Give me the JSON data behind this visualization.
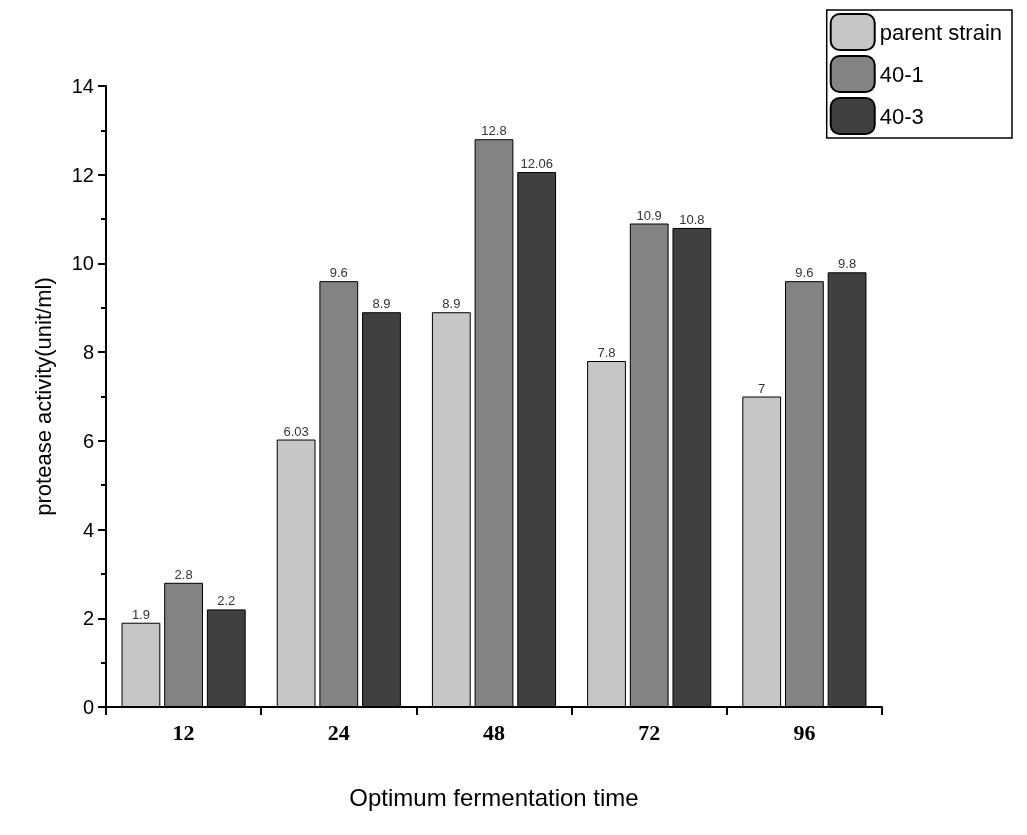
{
  "chart_data": {
    "type": "bar",
    "xlabel": "Optimum fermentation time",
    "ylabel": "protease activity(unit/ml)",
    "categories": [
      "12",
      "24",
      "48",
      "72",
      "96"
    ],
    "series": [
      {
        "name": "parent strain",
        "color": "#c6c6c6",
        "values": [
          1.9,
          6.03,
          8.9,
          7.8,
          7
        ]
      },
      {
        "name": "40-1",
        "color": "#838383",
        "values": [
          2.8,
          9.6,
          12.8,
          10.9,
          9.6
        ]
      },
      {
        "name": "40-3",
        "color": "#404040",
        "values": [
          2.2,
          8.9,
          12.06,
          10.8,
          9.8
        ]
      }
    ],
    "ylim": [
      0,
      14
    ],
    "yticks": [
      0,
      2,
      4,
      6,
      8,
      10,
      12,
      14
    ],
    "data_labels": true,
    "legend": "top right",
    "grid": false
  }
}
